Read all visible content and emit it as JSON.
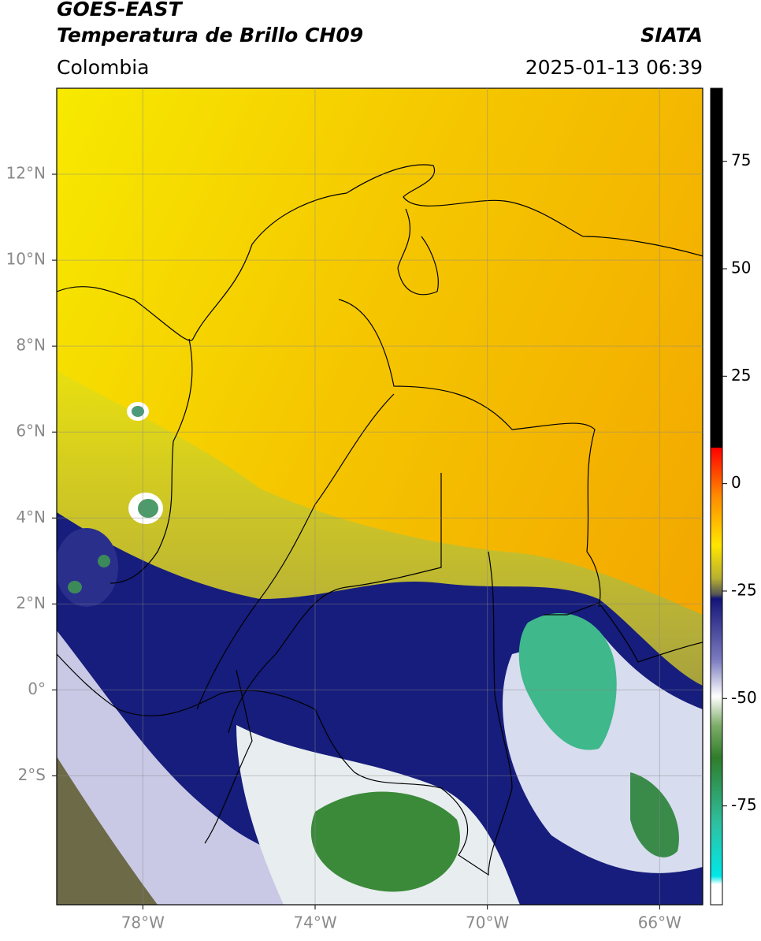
{
  "header": {
    "title": "GOES-EAST",
    "subtitle": "Temperatura de Brillo CH09",
    "source": "SIATA",
    "region": "Colombia",
    "timestamp": "2025-01-13 06:39"
  },
  "map": {
    "lon_range": [
      -80,
      -65
    ],
    "lat_range": [
      -5,
      14
    ],
    "lon_ticks": [
      {
        "value": -78,
        "label": "78°W"
      },
      {
        "value": -74,
        "label": "74°W"
      },
      {
        "value": -70,
        "label": "70°W"
      },
      {
        "value": -66,
        "label": "66°W"
      }
    ],
    "lat_ticks": [
      {
        "value": 12,
        "label": "12°N"
      },
      {
        "value": 10,
        "label": "10°N"
      },
      {
        "value": 8,
        "label": "8°N"
      },
      {
        "value": 6,
        "label": "6°N"
      },
      {
        "value": 4,
        "label": "4°N"
      },
      {
        "value": 2,
        "label": "2°N"
      },
      {
        "value": 0,
        "label": "0°"
      },
      {
        "value": -2,
        "label": "2°S"
      }
    ]
  },
  "colorbar": {
    "range": [
      -98,
      92
    ],
    "ticks": [
      75,
      50,
      25,
      0,
      -25,
      -50,
      -75
    ]
  }
}
